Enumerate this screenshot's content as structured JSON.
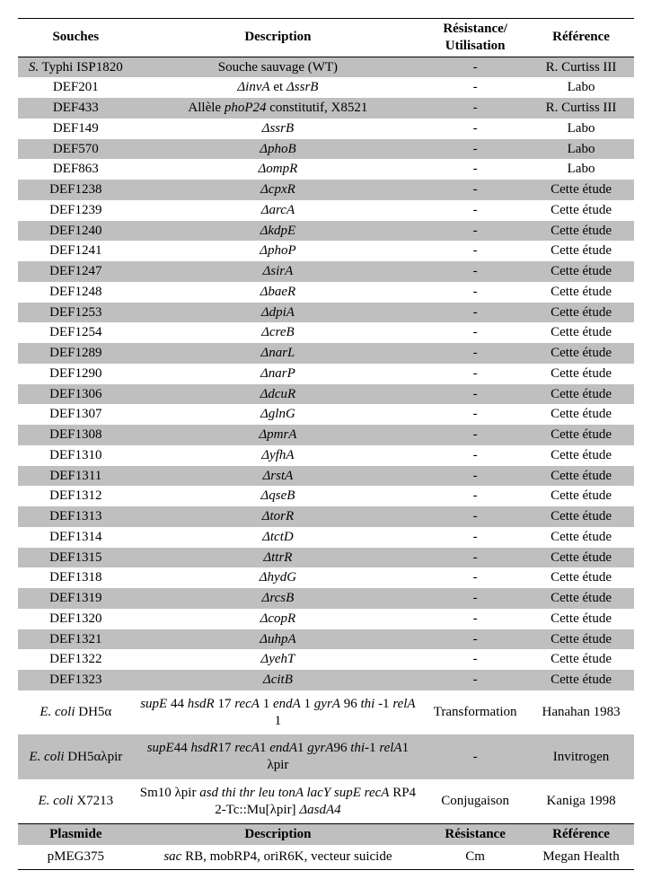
{
  "headers": {
    "souches": "Souches",
    "description": "Description",
    "resistance": "Résistance/ Utilisation",
    "reference": "Référence"
  },
  "rows": [
    {
      "souches_pre_i": "S.",
      "souches_post": " Typhi ISP1820",
      "desc": "Souche sauvage (WT)",
      "resist": "-",
      "ref": "R. Curtiss III",
      "shaded": true
    },
    {
      "souches": "DEF201",
      "desc_i": "ΔinvA",
      "desc_mid": " et ",
      "desc_i2": "ΔssrB",
      "resist": "-",
      "ref": "Labo",
      "shaded": false
    },
    {
      "souches": "DEF433",
      "desc_pre": "Allèle ",
      "desc_i": "phoP24",
      "desc_post": " constitutif, X8521",
      "resist": "-",
      "ref": "R. Curtiss III",
      "shaded": true
    },
    {
      "souches": "DEF149",
      "desc_i": "ΔssrB",
      "resist": "-",
      "ref": "Labo",
      "shaded": false
    },
    {
      "souches": "DEF570",
      "desc_i": "ΔphoB",
      "resist": "-",
      "ref": "Labo",
      "shaded": true
    },
    {
      "souches": "DEF863",
      "desc_i": "ΔompR",
      "resist": "-",
      "ref": "Labo",
      "shaded": false
    },
    {
      "souches": "DEF1238",
      "desc_i": "ΔcpxR",
      "resist": "-",
      "ref": "Cette étude",
      "shaded": true
    },
    {
      "souches": "DEF1239",
      "desc_i": "ΔarcA",
      "resist": "-",
      "ref": "Cette étude",
      "shaded": false
    },
    {
      "souches": "DEF1240",
      "desc_i": "ΔkdpE",
      "resist": "-",
      "ref": "Cette étude",
      "shaded": true
    },
    {
      "souches": "DEF1241",
      "desc_i": "ΔphoP",
      "resist": "-",
      "ref": "Cette étude",
      "shaded": false
    },
    {
      "souches": "DEF1247",
      "desc_i": "ΔsirA",
      "resist": "-",
      "ref": "Cette étude",
      "shaded": true
    },
    {
      "souches": "DEF1248",
      "desc_i": "ΔbaeR",
      "resist": "-",
      "ref": "Cette étude",
      "shaded": false
    },
    {
      "souches": "DEF1253",
      "desc_i": "ΔdpiA",
      "resist": "-",
      "ref": "Cette étude",
      "shaded": true
    },
    {
      "souches": "DEF1254",
      "desc_i": "ΔcreB",
      "resist": "-",
      "ref": "Cette étude",
      "shaded": false
    },
    {
      "souches": "DEF1289",
      "desc_i": "ΔnarL",
      "resist": "-",
      "ref": "Cette étude",
      "shaded": true
    },
    {
      "souches": "DEF1290",
      "desc_i": "ΔnarP",
      "resist": "-",
      "ref": "Cette étude",
      "shaded": false
    },
    {
      "souches": "DEF1306",
      "desc_i": "ΔdcuR",
      "resist": "-",
      "ref": "Cette étude",
      "shaded": true
    },
    {
      "souches": "DEF1307",
      "desc_i": "ΔglnG",
      "resist": "-",
      "ref": "Cette étude",
      "shaded": false
    },
    {
      "souches": "DEF1308",
      "desc_i": "ΔpmrA",
      "resist": "-",
      "ref": "Cette étude",
      "shaded": true
    },
    {
      "souches": "DEF1310",
      "desc_i": "ΔyfhA",
      "resist": "-",
      "ref": "Cette étude",
      "shaded": false
    },
    {
      "souches": "DEF1311",
      "desc_i": "ΔrstA",
      "resist": "-",
      "ref": "Cette étude",
      "shaded": true
    },
    {
      "souches": "DEF1312",
      "desc_i": "ΔqseB",
      "resist": "-",
      "ref": "Cette étude",
      "shaded": false
    },
    {
      "souches": "DEF1313",
      "desc_i": "ΔtorR",
      "resist": "-",
      "ref": "Cette étude",
      "shaded": true
    },
    {
      "souches": "DEF1314",
      "desc_i": "ΔtctD",
      "resist": "-",
      "ref": "Cette étude",
      "shaded": false
    },
    {
      "souches": "DEF1315",
      "desc_i": "ΔttrR",
      "resist": "-",
      "ref": "Cette étude",
      "shaded": true
    },
    {
      "souches": "DEF1318",
      "desc_i": "ΔhydG",
      "resist": "-",
      "ref": "Cette étude",
      "shaded": false
    },
    {
      "souches": "DEF1319",
      "desc_i": "ΔrcsB",
      "resist": "-",
      "ref": "Cette étude",
      "shaded": true
    },
    {
      "souches": "DEF1320",
      "desc_i": "ΔcopR",
      "resist": "-",
      "ref": "Cette étude",
      "shaded": false
    },
    {
      "souches": "DEF1321",
      "desc_i": "ΔuhpA",
      "resist": "-",
      "ref": "Cette étude",
      "shaded": true
    },
    {
      "souches": "DEF1322",
      "desc_i": "ΔyehT",
      "resist": "-",
      "ref": "Cette étude",
      "shaded": false
    },
    {
      "souches": "DEF1323",
      "desc_i": "ΔcitB",
      "resist": "-",
      "ref": "Cette étude",
      "shaded": true
    }
  ],
  "ecoli": [
    {
      "name_i": "E. coli",
      "name_post": " DH5α",
      "desc_html": "<span class='it'>supE</span> 44 <span class='it'>hsdR</span> 17 <span class='it'>recA</span> 1 <span class='it'>endA</span> 1 <span class='it'>gyrA</span> 96 <span class='it'>thi</span> -1 <span class='it'>relA</span> 1",
      "resist": "Transformation",
      "ref": "Hanahan 1983",
      "shaded": false
    },
    {
      "name_i": "E. coli",
      "name_post": " DH5αλpir",
      "desc_html": "<span class='it'>supE</span>44 <span class='it'>hsdR</span>17 <span class='it'>recA</span>1 <span class='it'>endA</span>1 <span class='it'>gyrA</span>96 <span class='it'>thi-</span>1 <span class='it'>relA</span>1 λpir",
      "resist": "-",
      "ref": "Invitrogen",
      "shaded": true
    },
    {
      "name_i": "E. coli",
      "name_post": " X7213",
      "desc_html": "Sm10 λpir <span class='it'>asd thi thr leu tonA lacY supE recA</span> RP4 2-Tc::Mu[λpir] <span class='it'>ΔasdA4</span>",
      "resist": "Conjugaison",
      "ref": "Kaniga 1998",
      "shaded": false
    }
  ],
  "subheader": {
    "plasmide": "Plasmide",
    "description": "Description",
    "resistance": "Résistance",
    "reference": "Référence"
  },
  "plasmid": {
    "name": "pMEG375",
    "desc_html": "<span class='it'>sac</span> RB, mobRP4, oriR6K, vecteur suicide",
    "resist": "Cm",
    "ref": "Megan Health"
  }
}
